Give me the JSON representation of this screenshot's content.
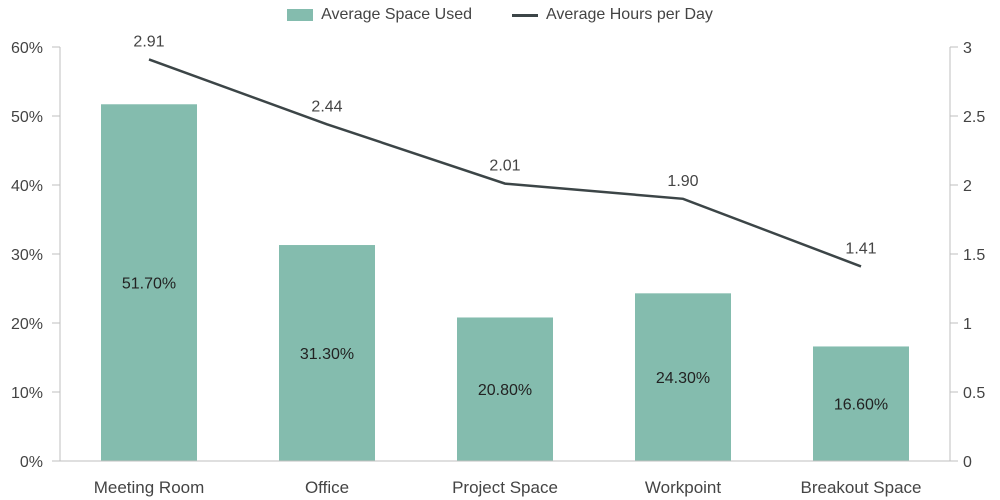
{
  "chart_data": {
    "type": "bar",
    "categories": [
      "Meeting Room",
      "Office",
      "Project Space",
      "Workpoint",
      "Breakout Space"
    ],
    "series": [
      {
        "name": "Average Space Used",
        "type": "bar",
        "axis": "left",
        "values": [
          51.7,
          31.3,
          20.8,
          24.3,
          16.6
        ],
        "labels": [
          "51.70%",
          "31.30%",
          "20.80%",
          "24.30%",
          "16.60%"
        ]
      },
      {
        "name": "Average Hours per Day",
        "type": "line",
        "axis": "right",
        "values": [
          2.91,
          2.44,
          2.01,
          1.9,
          1.41
        ],
        "labels": [
          "2.91",
          "2.44",
          "2.01",
          "1.90",
          "1.41"
        ]
      }
    ],
    "y_left": {
      "min": 0,
      "max": 60,
      "ticks": [
        "0%",
        "10%",
        "20%",
        "30%",
        "40%",
        "50%",
        "60%"
      ]
    },
    "y_right": {
      "min": 0,
      "max": 3,
      "ticks": [
        "0",
        "0.5",
        "1",
        "1.5",
        "2",
        "2.5",
        "3"
      ]
    },
    "legend_position": "top-center",
    "grid": false
  },
  "colors": {
    "bar": "#84bcae",
    "line": "#3c4547",
    "axis": "#bfbfbf",
    "text": "#444444"
  }
}
